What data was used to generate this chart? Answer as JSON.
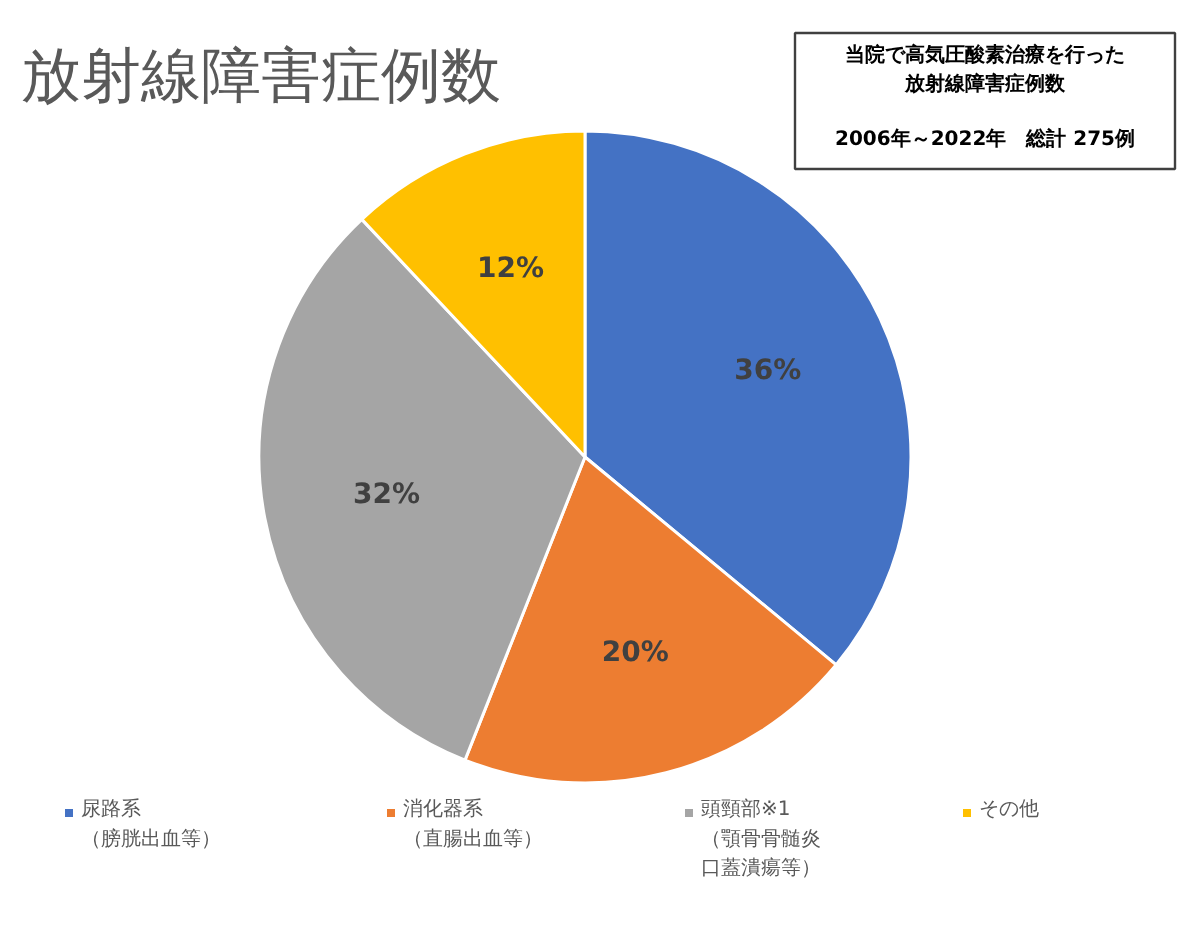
{
  "chart_data": {
    "type": "pie",
    "title": "放射線障害症例数",
    "categories": [
      "尿路系（膀胱出血等）",
      "消化器系（直腸出血等）",
      "頭頸部※1（顎骨骨髄炎口蓋潰瘍等）",
      "その他"
    ],
    "values": [
      36,
      20,
      32,
      12
    ],
    "value_labels": [
      "36%",
      "20%",
      "32%",
      "12%"
    ],
    "colors": [
      "#4472c4",
      "#ed7d31",
      "#a5a5a5",
      "#ffc000"
    ],
    "legend": "bottom",
    "annotations": [
      "当院で高気圧酸素治療を行った放射線障害症例数",
      "2006年～2022年　総計 275例"
    ]
  }
}
